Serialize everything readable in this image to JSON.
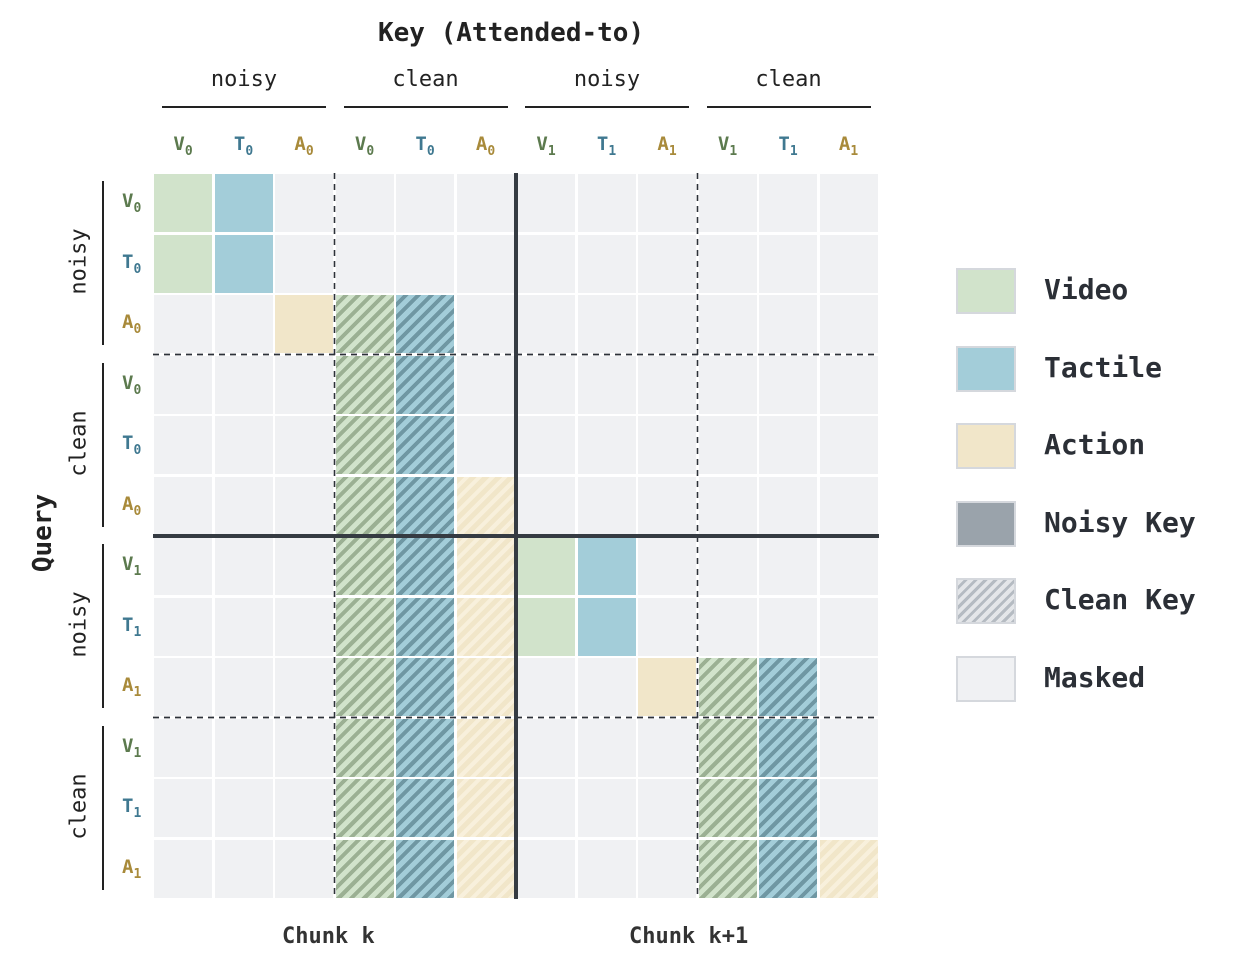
{
  "title": "Key (Attended-to)",
  "query_label": "Query",
  "key_groups": [
    "noisy",
    "clean",
    "noisy",
    "clean"
  ],
  "query_groups": [
    "noisy",
    "clean",
    "noisy",
    "clean"
  ],
  "tokens": [
    {
      "letter": "V",
      "sub": "0",
      "type": "video"
    },
    {
      "letter": "T",
      "sub": "0",
      "type": "tactile"
    },
    {
      "letter": "A",
      "sub": "0",
      "type": "action"
    },
    {
      "letter": "V",
      "sub": "0",
      "type": "video"
    },
    {
      "letter": "T",
      "sub": "0",
      "type": "tactile"
    },
    {
      "letter": "A",
      "sub": "0",
      "type": "action"
    },
    {
      "letter": "V",
      "sub": "1",
      "type": "video"
    },
    {
      "letter": "T",
      "sub": "1",
      "type": "tactile"
    },
    {
      "letter": "A",
      "sub": "1",
      "type": "action"
    },
    {
      "letter": "V",
      "sub": "1",
      "type": "video"
    },
    {
      "letter": "T",
      "sub": "1",
      "type": "tactile"
    },
    {
      "letter": "A",
      "sub": "1",
      "type": "action"
    }
  ],
  "token_colors": {
    "video": "#5c7a4e",
    "tactile": "#3f7890",
    "action": "#a88a3a"
  },
  "chunks": [
    "Chunk k",
    "Chunk k+1"
  ],
  "matrix": [
    "VT..........",
    "VT..........",
    "..Avt.......",
    "...vt.......",
    "...vt.......",
    "...vta......",
    "...vtaVT....",
    "...vtaVT....",
    "...vta..Avt.",
    "...vta...vt.",
    "...vta...vt.",
    "...vta...vta"
  ],
  "legend": [
    {
      "label": "Video",
      "style": "c-video"
    },
    {
      "label": "Tactile",
      "style": "c-tactile"
    },
    {
      "label": "Action",
      "style": "c-action"
    },
    {
      "label": "Noisy Key",
      "style": "c-noisy"
    },
    {
      "label": "Clean Key",
      "style": "p-clean"
    },
    {
      "label": "Masked",
      "style": "c-masked"
    }
  ]
}
